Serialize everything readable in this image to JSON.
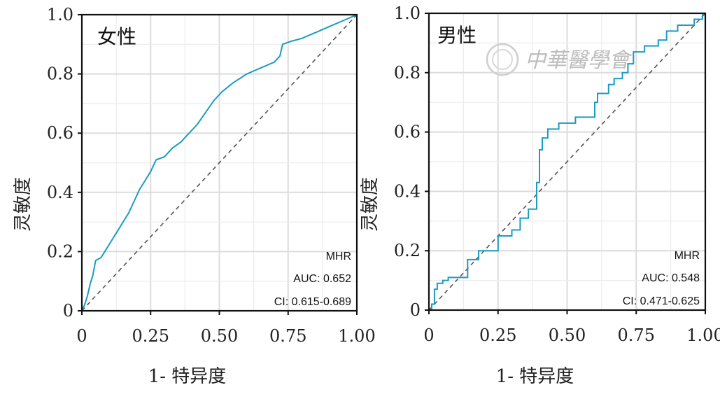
{
  "colors": {
    "roc": "#1a9cc0",
    "diagonal": "#555555",
    "grid_major": "#dcdcdc",
    "grid_minor": "#ececec",
    "watermark": "#c4c4c4"
  },
  "watermark": {
    "text": "中華醫學會"
  },
  "chart_data": [
    {
      "type": "line",
      "panel_label": "女性",
      "xlabel": "1- 特异度",
      "ylabel": "灵敏度",
      "xlim": [
        0,
        1
      ],
      "ylim": [
        0,
        1
      ],
      "xticks": [
        "0",
        "0.25",
        "0.50",
        "0.75",
        "1.00"
      ],
      "yticks": [
        "0",
        "0.2",
        "0.4",
        "0.6",
        "0.8",
        "1.0"
      ],
      "grid": true,
      "legend": {
        "title": "MHR",
        "auc": "AUC: 0.652",
        "ci": "CI: 0.615-0.689"
      },
      "series": [
        {
          "values": [
            [
              0,
              0
            ],
            [
              0.01,
              0.02
            ],
            [
              0.02,
              0.05
            ],
            [
              0.03,
              0.09
            ],
            [
              0.04,
              0.12
            ],
            [
              0.05,
              0.17
            ],
            [
              0.07,
              0.18
            ],
            [
              0.09,
              0.21
            ],
            [
              0.11,
              0.24
            ],
            [
              0.13,
              0.27
            ],
            [
              0.15,
              0.3
            ],
            [
              0.17,
              0.33
            ],
            [
              0.19,
              0.37
            ],
            [
              0.21,
              0.41
            ],
            [
              0.23,
              0.44
            ],
            [
              0.25,
              0.47
            ],
            [
              0.27,
              0.51
            ],
            [
              0.3,
              0.52
            ],
            [
              0.33,
              0.55
            ],
            [
              0.36,
              0.57
            ],
            [
              0.39,
              0.6
            ],
            [
              0.42,
              0.63
            ],
            [
              0.45,
              0.67
            ],
            [
              0.48,
              0.71
            ],
            [
              0.51,
              0.74
            ],
            [
              0.55,
              0.77
            ],
            [
              0.6,
              0.8
            ],
            [
              0.65,
              0.82
            ],
            [
              0.7,
              0.84
            ],
            [
              0.72,
              0.86
            ],
            [
              0.73,
              0.9
            ],
            [
              0.76,
              0.91
            ],
            [
              0.8,
              0.92
            ],
            [
              0.85,
              0.94
            ],
            [
              0.9,
              0.96
            ],
            [
              0.95,
              0.98
            ],
            [
              1.0,
              1.0
            ]
          ]
        }
      ]
    },
    {
      "type": "line",
      "panel_label": "男性",
      "xlabel": "1- 特异度",
      "ylabel": "灵敏度",
      "xlim": [
        0,
        1
      ],
      "ylim": [
        0,
        1
      ],
      "xticks": [
        "0",
        "0.25",
        "0.50",
        "0.75",
        "1.00"
      ],
      "yticks": [
        "0",
        "0.2",
        "0.4",
        "0.6",
        "0.8",
        "1.0"
      ],
      "grid": true,
      "legend": {
        "title": "MHR",
        "auc": "AUC: 0.548",
        "ci": "CI: 0.471-0.625"
      },
      "series": [
        {
          "values": [
            [
              0,
              0
            ],
            [
              0.01,
              0
            ],
            [
              0.01,
              0.02
            ],
            [
              0.02,
              0.02
            ],
            [
              0.02,
              0.07
            ],
            [
              0.03,
              0.07
            ],
            [
              0.03,
              0.09
            ],
            [
              0.05,
              0.09
            ],
            [
              0.05,
              0.1
            ],
            [
              0.07,
              0.1
            ],
            [
              0.07,
              0.11
            ],
            [
              0.14,
              0.11
            ],
            [
              0.14,
              0.17
            ],
            [
              0.18,
              0.17
            ],
            [
              0.18,
              0.2
            ],
            [
              0.25,
              0.2
            ],
            [
              0.25,
              0.25
            ],
            [
              0.3,
              0.25
            ],
            [
              0.3,
              0.27
            ],
            [
              0.33,
              0.27
            ],
            [
              0.33,
              0.31
            ],
            [
              0.36,
              0.31
            ],
            [
              0.36,
              0.34
            ],
            [
              0.39,
              0.34
            ],
            [
              0.39,
              0.43
            ],
            [
              0.4,
              0.43
            ],
            [
              0.4,
              0.54
            ],
            [
              0.41,
              0.54
            ],
            [
              0.41,
              0.58
            ],
            [
              0.43,
              0.58
            ],
            [
              0.43,
              0.61
            ],
            [
              0.47,
              0.61
            ],
            [
              0.47,
              0.63
            ],
            [
              0.53,
              0.63
            ],
            [
              0.53,
              0.65
            ],
            [
              0.6,
              0.65
            ],
            [
              0.6,
              0.7
            ],
            [
              0.61,
              0.7
            ],
            [
              0.61,
              0.73
            ],
            [
              0.65,
              0.73
            ],
            [
              0.65,
              0.76
            ],
            [
              0.67,
              0.76
            ],
            [
              0.67,
              0.78
            ],
            [
              0.7,
              0.78
            ],
            [
              0.7,
              0.8
            ],
            [
              0.72,
              0.8
            ],
            [
              0.72,
              0.83
            ],
            [
              0.74,
              0.83
            ],
            [
              0.74,
              0.87
            ],
            [
              0.78,
              0.87
            ],
            [
              0.78,
              0.89
            ],
            [
              0.83,
              0.89
            ],
            [
              0.83,
              0.91
            ],
            [
              0.86,
              0.91
            ],
            [
              0.86,
              0.94
            ],
            [
              0.9,
              0.94
            ],
            [
              0.9,
              0.96
            ],
            [
              0.96,
              0.96
            ],
            [
              0.96,
              0.98
            ],
            [
              0.99,
              0.98
            ],
            [
              0.99,
              1.0
            ],
            [
              1.0,
              1.0
            ]
          ]
        }
      ]
    }
  ]
}
